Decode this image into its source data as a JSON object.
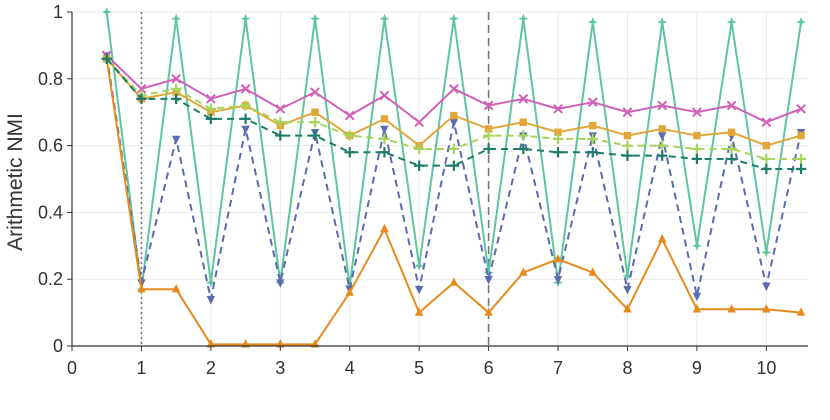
{
  "chart_data": {
    "type": "line",
    "ylabel": "Arithmetic NMI",
    "xlim": [
      0,
      10.6
    ],
    "ylim": [
      0,
      1
    ],
    "xticks": [
      0,
      1,
      2,
      3,
      4,
      5,
      6,
      7,
      8,
      9,
      10
    ],
    "yticks": [
      0,
      0.2,
      0.4,
      0.6,
      0.8,
      1
    ],
    "grid": true,
    "legend": "none",
    "vlines": [
      {
        "x": 1,
        "style": "dotted",
        "color": "#777777"
      },
      {
        "x": 6,
        "style": "dashed",
        "color": "#777777"
      }
    ],
    "x": [
      0.5,
      1,
      1.5,
      2,
      2.5,
      3,
      3.5,
      4,
      4.5,
      5,
      5.5,
      6,
      6.5,
      7,
      7.5,
      8,
      8.5,
      9,
      9.5,
      10,
      10.5
    ],
    "series": [
      {
        "color": "#5fc4a0",
        "dash": "solid",
        "marker": "star",
        "values": [
          1.0,
          0.17,
          0.98,
          0.19,
          0.98,
          0.19,
          0.98,
          0.18,
          0.98,
          0.24,
          0.98,
          0.22,
          0.98,
          0.19,
          0.97,
          0.21,
          0.97,
          0.3,
          0.97,
          0.28,
          0.97
        ]
      },
      {
        "color": "#5c6ab0",
        "dash": "dashed",
        "marker": "tri_down",
        "values": [
          0.87,
          0.19,
          0.62,
          0.14,
          0.65,
          0.19,
          0.64,
          0.17,
          0.65,
          0.17,
          0.67,
          0.2,
          0.63,
          0.2,
          0.63,
          0.17,
          0.63,
          0.15,
          0.63,
          0.18,
          0.64
        ]
      },
      {
        "color": "#e68a1c",
        "dash": "solid",
        "marker": "triangle",
        "values": [
          0.86,
          0.17,
          0.17,
          0.005,
          0.005,
          0.005,
          0.005,
          0.16,
          0.35,
          0.1,
          0.19,
          0.1,
          0.22,
          0.26,
          0.22,
          0.11,
          0.32,
          0.11,
          0.11,
          0.11,
          0.1
        ]
      },
      {
        "color": "#d060b8",
        "dash": "solid",
        "marker": "x",
        "values": [
          0.87,
          0.77,
          0.8,
          0.74,
          0.77,
          0.71,
          0.76,
          0.69,
          0.75,
          0.67,
          0.77,
          0.72,
          0.74,
          0.71,
          0.73,
          0.7,
          0.72,
          0.7,
          0.72,
          0.67,
          0.71
        ]
      },
      {
        "color": "#e0a83a",
        "dash": "solid",
        "marker": "square",
        "values": [
          0.86,
          0.74,
          0.76,
          0.7,
          0.72,
          0.66,
          0.7,
          0.63,
          0.68,
          0.6,
          0.69,
          0.65,
          0.67,
          0.64,
          0.66,
          0.63,
          0.65,
          0.63,
          0.64,
          0.6,
          0.63
        ]
      },
      {
        "color": "#a6d45c",
        "dash": "dashed",
        "marker": "plus",
        "values": [
          0.86,
          0.75,
          0.77,
          0.71,
          0.72,
          0.67,
          0.67,
          0.63,
          0.62,
          0.59,
          0.59,
          0.63,
          0.63,
          0.62,
          0.62,
          0.6,
          0.6,
          0.59,
          0.59,
          0.56,
          0.56
        ]
      },
      {
        "color": "#1f7a6a",
        "dash": "dashed",
        "marker": "plus",
        "values": [
          0.86,
          0.74,
          0.74,
          0.68,
          0.68,
          0.63,
          0.63,
          0.58,
          0.58,
          0.54,
          0.54,
          0.59,
          0.59,
          0.58,
          0.58,
          0.57,
          0.57,
          0.56,
          0.56,
          0.53,
          0.53
        ]
      }
    ]
  }
}
